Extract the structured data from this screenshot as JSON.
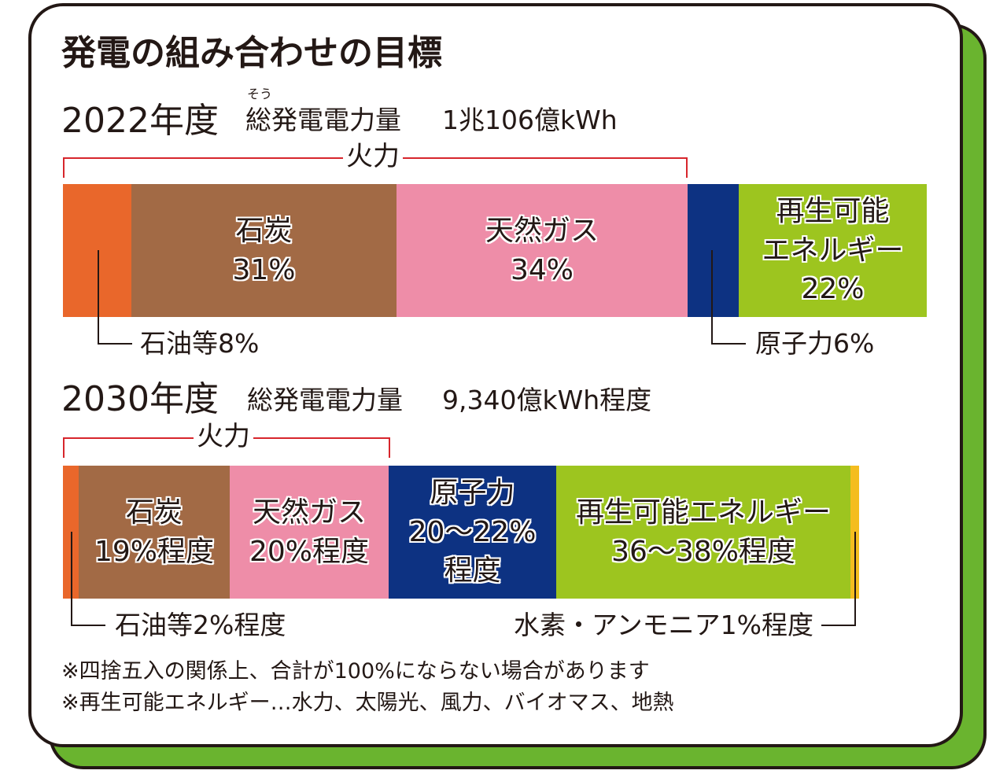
{
  "title": "発電の組み合わせの目標",
  "year_2022": {
    "year_label": "2022年度",
    "total_label": "総発電電力量",
    "ruby": "そう",
    "total_value": "1兆106億kWh",
    "bracket_label": "火力",
    "oil_label": "石油等8%",
    "nuclear_label": "原子力6%"
  },
  "year_2030": {
    "year_label": "2030年度",
    "total_label": "総発電電力量",
    "total_value": "9,340億kWh程度",
    "bracket_label": "火力",
    "oil_label": "石油等2%程度",
    "hydrogen_label": "水素・アンモニア1%程度"
  },
  "notes": [
    "※四捨五入の関係上、合計が100%にならない場合があります",
    "※再生可能エネルギー…水力、太陽光、風力、バイオマス、地熱"
  ],
  "colors": {
    "oil": "#e9672b",
    "coal": "#a26a45",
    "gas": "#ee8da8",
    "nuclear": "#0d3282",
    "renewable": "#9dc51f",
    "hydrogen": "#f4bd1f",
    "bracket": "#d7262c",
    "frame_shadow": "#6ab42f"
  },
  "chart_data": [
    {
      "type": "bar",
      "stacked": true,
      "title": "2022年度",
      "categories": [
        "石油等",
        "石炭",
        "天然ガス",
        "原子力",
        "再生可能エネルギー"
      ],
      "values": [
        8,
        31,
        34,
        6,
        22
      ],
      "unit": "%",
      "labels_inside": [
        [],
        [
          "石炭",
          "31%"
        ],
        [
          "天然ガス",
          "34%"
        ],
        [],
        [
          "再生可能",
          "エネルギー",
          "22%"
        ]
      ]
    },
    {
      "type": "bar",
      "stacked": true,
      "title": "2030年度",
      "categories": [
        "石油等",
        "石炭",
        "天然ガス",
        "原子力",
        "再生可能エネルギー",
        "水素・アンモニア"
      ],
      "values": [
        2,
        19,
        20,
        21,
        37,
        1
      ],
      "unit": "%",
      "labels_inside": [
        [],
        [
          "石炭",
          "19%程度"
        ],
        [
          "天然ガス",
          "20%程度"
        ],
        [
          "原子力",
          "20～22%",
          "程度"
        ],
        [
          "再生可能エネルギー",
          "36～38%程度"
        ],
        []
      ]
    }
  ]
}
